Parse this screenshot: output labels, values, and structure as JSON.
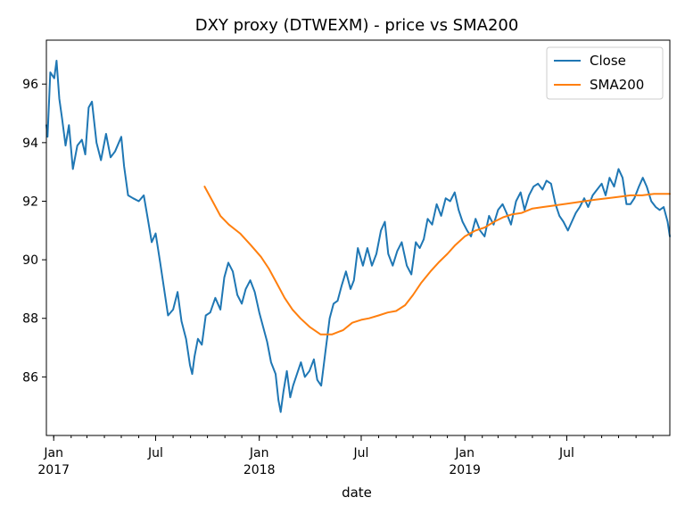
{
  "chart_data": {
    "type": "line",
    "title": "DXY proxy (DTWEXM) - price vs SMA200",
    "xlabel": "date",
    "ylabel": "",
    "xlim": [
      "2016-12-19",
      "2019-12-31"
    ],
    "ylim": [
      84.0,
      97.5
    ],
    "grid": false,
    "legend_position": "top-right",
    "x_ticks": [
      {
        "date": "2017-01-01",
        "label": "Jan",
        "sublabel": "2017"
      },
      {
        "date": "2017-07-01",
        "label": "Jul",
        "sublabel": ""
      },
      {
        "date": "2018-01-01",
        "label": "Jan",
        "sublabel": "2018"
      },
      {
        "date": "2018-07-01",
        "label": "Jul",
        "sublabel": ""
      },
      {
        "date": "2019-01-01",
        "label": "Jan",
        "sublabel": "2019"
      },
      {
        "date": "2019-07-01",
        "label": "Jul",
        "sublabel": ""
      }
    ],
    "y_ticks": [
      86,
      88,
      90,
      92,
      94,
      96
    ],
    "series": [
      {
        "name": "Close",
        "color": "#1f77b4",
        "points": [
          [
            "2016-12-19",
            94.6
          ],
          [
            "2016-12-21",
            94.2
          ],
          [
            "2016-12-26",
            96.4
          ],
          [
            "2017-01-02",
            96.2
          ],
          [
            "2017-01-06",
            96.8
          ],
          [
            "2017-01-11",
            95.5
          ],
          [
            "2017-01-16",
            94.8
          ],
          [
            "2017-01-22",
            93.9
          ],
          [
            "2017-01-28",
            94.6
          ],
          [
            "2017-02-04",
            93.1
          ],
          [
            "2017-02-12",
            93.9
          ],
          [
            "2017-02-20",
            94.1
          ],
          [
            "2017-02-26",
            93.6
          ],
          [
            "2017-03-04",
            95.2
          ],
          [
            "2017-03-10",
            95.4
          ],
          [
            "2017-03-18",
            94.0
          ],
          [
            "2017-03-26",
            93.4
          ],
          [
            "2017-04-04",
            94.3
          ],
          [
            "2017-04-12",
            93.5
          ],
          [
            "2017-04-20",
            93.7
          ],
          [
            "2017-05-01",
            94.2
          ],
          [
            "2017-05-06",
            93.2
          ],
          [
            "2017-05-13",
            92.2
          ],
          [
            "2017-05-22",
            92.1
          ],
          [
            "2017-06-01",
            92.0
          ],
          [
            "2017-06-10",
            92.2
          ],
          [
            "2017-06-17",
            91.4
          ],
          [
            "2017-06-24",
            90.6
          ],
          [
            "2017-07-01",
            90.9
          ],
          [
            "2017-07-09",
            89.9
          ],
          [
            "2017-07-16",
            89.0
          ],
          [
            "2017-07-23",
            88.1
          ],
          [
            "2017-08-01",
            88.3
          ],
          [
            "2017-08-09",
            88.9
          ],
          [
            "2017-08-16",
            87.9
          ],
          [
            "2017-08-24",
            87.3
          ],
          [
            "2017-08-31",
            86.4
          ],
          [
            "2017-09-04",
            86.1
          ],
          [
            "2017-09-08",
            86.7
          ],
          [
            "2017-09-14",
            87.3
          ],
          [
            "2017-09-21",
            87.1
          ],
          [
            "2017-09-28",
            88.1
          ],
          [
            "2017-10-06",
            88.2
          ],
          [
            "2017-10-15",
            88.7
          ],
          [
            "2017-10-24",
            88.3
          ],
          [
            "2017-10-31",
            89.4
          ],
          [
            "2017-11-07",
            89.9
          ],
          [
            "2017-11-15",
            89.6
          ],
          [
            "2017-11-23",
            88.8
          ],
          [
            "2017-12-01",
            88.5
          ],
          [
            "2017-12-08",
            89.0
          ],
          [
            "2017-12-16",
            89.3
          ],
          [
            "2017-12-24",
            88.9
          ],
          [
            "2018-01-01",
            88.2
          ],
          [
            "2018-01-08",
            87.7
          ],
          [
            "2018-01-15",
            87.2
          ],
          [
            "2018-01-22",
            86.5
          ],
          [
            "2018-01-30",
            86.1
          ],
          [
            "2018-02-04",
            85.2
          ],
          [
            "2018-02-08",
            84.8
          ],
          [
            "2018-02-13",
            85.5
          ],
          [
            "2018-02-19",
            86.2
          ],
          [
            "2018-02-25",
            85.3
          ],
          [
            "2018-03-02",
            85.7
          ],
          [
            "2018-03-09",
            86.1
          ],
          [
            "2018-03-16",
            86.5
          ],
          [
            "2018-03-23",
            86.0
          ],
          [
            "2018-03-31",
            86.2
          ],
          [
            "2018-04-08",
            86.6
          ],
          [
            "2018-04-14",
            85.9
          ],
          [
            "2018-04-21",
            85.7
          ],
          [
            "2018-04-28",
            86.8
          ],
          [
            "2018-05-06",
            88.0
          ],
          [
            "2018-05-13",
            88.5
          ],
          [
            "2018-05-20",
            88.6
          ],
          [
            "2018-05-27",
            89.1
          ],
          [
            "2018-06-04",
            89.6
          ],
          [
            "2018-06-12",
            89.0
          ],
          [
            "2018-06-18",
            89.3
          ],
          [
            "2018-06-25",
            90.4
          ],
          [
            "2018-07-04",
            89.8
          ],
          [
            "2018-07-12",
            90.4
          ],
          [
            "2018-07-20",
            89.8
          ],
          [
            "2018-07-28",
            90.2
          ],
          [
            "2018-08-05",
            91.0
          ],
          [
            "2018-08-12",
            91.3
          ],
          [
            "2018-08-18",
            90.2
          ],
          [
            "2018-08-26",
            89.8
          ],
          [
            "2018-09-03",
            90.3
          ],
          [
            "2018-09-11",
            90.6
          ],
          [
            "2018-09-20",
            89.8
          ],
          [
            "2018-09-28",
            89.5
          ],
          [
            "2018-10-06",
            90.6
          ],
          [
            "2018-10-13",
            90.4
          ],
          [
            "2018-10-20",
            90.7
          ],
          [
            "2018-10-27",
            91.4
          ],
          [
            "2018-11-04",
            91.2
          ],
          [
            "2018-11-12",
            91.9
          ],
          [
            "2018-11-20",
            91.5
          ],
          [
            "2018-11-28",
            92.1
          ],
          [
            "2018-12-06",
            92.0
          ],
          [
            "2018-12-14",
            92.3
          ],
          [
            "2018-12-21",
            91.7
          ],
          [
            "2018-12-28",
            91.3
          ],
          [
            "2019-01-05",
            91.0
          ],
          [
            "2019-01-12",
            90.8
          ],
          [
            "2019-01-20",
            91.4
          ],
          [
            "2019-01-28",
            91.0
          ],
          [
            "2019-02-05",
            90.8
          ],
          [
            "2019-02-13",
            91.5
          ],
          [
            "2019-02-21",
            91.2
          ],
          [
            "2019-03-01",
            91.7
          ],
          [
            "2019-03-09",
            91.9
          ],
          [
            "2019-03-16",
            91.6
          ],
          [
            "2019-03-24",
            91.2
          ],
          [
            "2019-04-02",
            92.0
          ],
          [
            "2019-04-10",
            92.3
          ],
          [
            "2019-04-17",
            91.7
          ],
          [
            "2019-04-25",
            92.2
          ],
          [
            "2019-05-03",
            92.5
          ],
          [
            "2019-05-11",
            92.6
          ],
          [
            "2019-05-19",
            92.4
          ],
          [
            "2019-05-26",
            92.7
          ],
          [
            "2019-06-03",
            92.6
          ],
          [
            "2019-06-11",
            91.9
          ],
          [
            "2019-06-18",
            91.5
          ],
          [
            "2019-06-25",
            91.3
          ],
          [
            "2019-07-03",
            91.0
          ],
          [
            "2019-07-10",
            91.3
          ],
          [
            "2019-07-17",
            91.6
          ],
          [
            "2019-07-24",
            91.8
          ],
          [
            "2019-08-01",
            92.1
          ],
          [
            "2019-08-08",
            91.8
          ],
          [
            "2019-08-16",
            92.2
          ],
          [
            "2019-08-24",
            92.4
          ],
          [
            "2019-09-01",
            92.6
          ],
          [
            "2019-09-08",
            92.2
          ],
          [
            "2019-09-15",
            92.8
          ],
          [
            "2019-09-23",
            92.5
          ],
          [
            "2019-10-01",
            93.1
          ],
          [
            "2019-10-08",
            92.8
          ],
          [
            "2019-10-15",
            91.9
          ],
          [
            "2019-10-22",
            91.9
          ],
          [
            "2019-10-29",
            92.1
          ],
          [
            "2019-11-06",
            92.5
          ],
          [
            "2019-11-13",
            92.8
          ],
          [
            "2019-11-20",
            92.5
          ],
          [
            "2019-11-28",
            92.0
          ],
          [
            "2019-12-06",
            91.8
          ],
          [
            "2019-12-13",
            91.7
          ],
          [
            "2019-12-20",
            91.8
          ],
          [
            "2019-12-27",
            91.3
          ],
          [
            "2019-12-31",
            90.8
          ]
        ]
      },
      {
        "name": "SMA200",
        "color": "#ff7f0e",
        "points": [
          [
            "2017-09-26",
            92.5
          ],
          [
            "2017-10-10",
            92.0
          ],
          [
            "2017-10-24",
            91.5
          ],
          [
            "2017-11-08",
            91.2
          ],
          [
            "2017-11-28",
            90.9
          ],
          [
            "2017-12-17",
            90.5
          ],
          [
            "2018-01-04",
            90.1
          ],
          [
            "2018-01-18",
            89.7
          ],
          [
            "2018-02-01",
            89.2
          ],
          [
            "2018-02-15",
            88.7
          ],
          [
            "2018-03-01",
            88.3
          ],
          [
            "2018-03-15",
            88.0
          ],
          [
            "2018-04-01",
            87.7
          ],
          [
            "2018-04-20",
            87.45
          ],
          [
            "2018-05-10",
            87.45
          ],
          [
            "2018-05-30",
            87.6
          ],
          [
            "2018-06-15",
            87.85
          ],
          [
            "2018-07-01",
            87.95
          ],
          [
            "2018-07-15",
            88.0
          ],
          [
            "2018-08-01",
            88.1
          ],
          [
            "2018-08-17",
            88.2
          ],
          [
            "2018-09-01",
            88.25
          ],
          [
            "2018-09-17",
            88.45
          ],
          [
            "2018-10-01",
            88.8
          ],
          [
            "2018-10-15",
            89.2
          ],
          [
            "2018-11-01",
            89.6
          ],
          [
            "2018-11-15",
            89.9
          ],
          [
            "2018-12-01",
            90.2
          ],
          [
            "2018-12-15",
            90.5
          ],
          [
            "2019-01-01",
            90.8
          ],
          [
            "2019-01-20",
            91.0
          ],
          [
            "2019-02-05",
            91.1
          ],
          [
            "2019-02-22",
            91.3
          ],
          [
            "2019-03-10",
            91.45
          ],
          [
            "2019-03-26",
            91.55
          ],
          [
            "2019-04-12",
            91.6
          ],
          [
            "2019-05-01",
            91.75
          ],
          [
            "2019-05-20",
            91.8
          ],
          [
            "2019-06-08",
            91.85
          ],
          [
            "2019-06-26",
            91.9
          ],
          [
            "2019-07-14",
            91.95
          ],
          [
            "2019-08-01",
            92.0
          ],
          [
            "2019-08-21",
            92.05
          ],
          [
            "2019-09-10",
            92.1
          ],
          [
            "2019-10-01",
            92.15
          ],
          [
            "2019-10-22",
            92.2
          ],
          [
            "2019-11-12",
            92.2
          ],
          [
            "2019-12-03",
            92.25
          ],
          [
            "2019-12-31",
            92.25
          ]
        ]
      }
    ]
  }
}
